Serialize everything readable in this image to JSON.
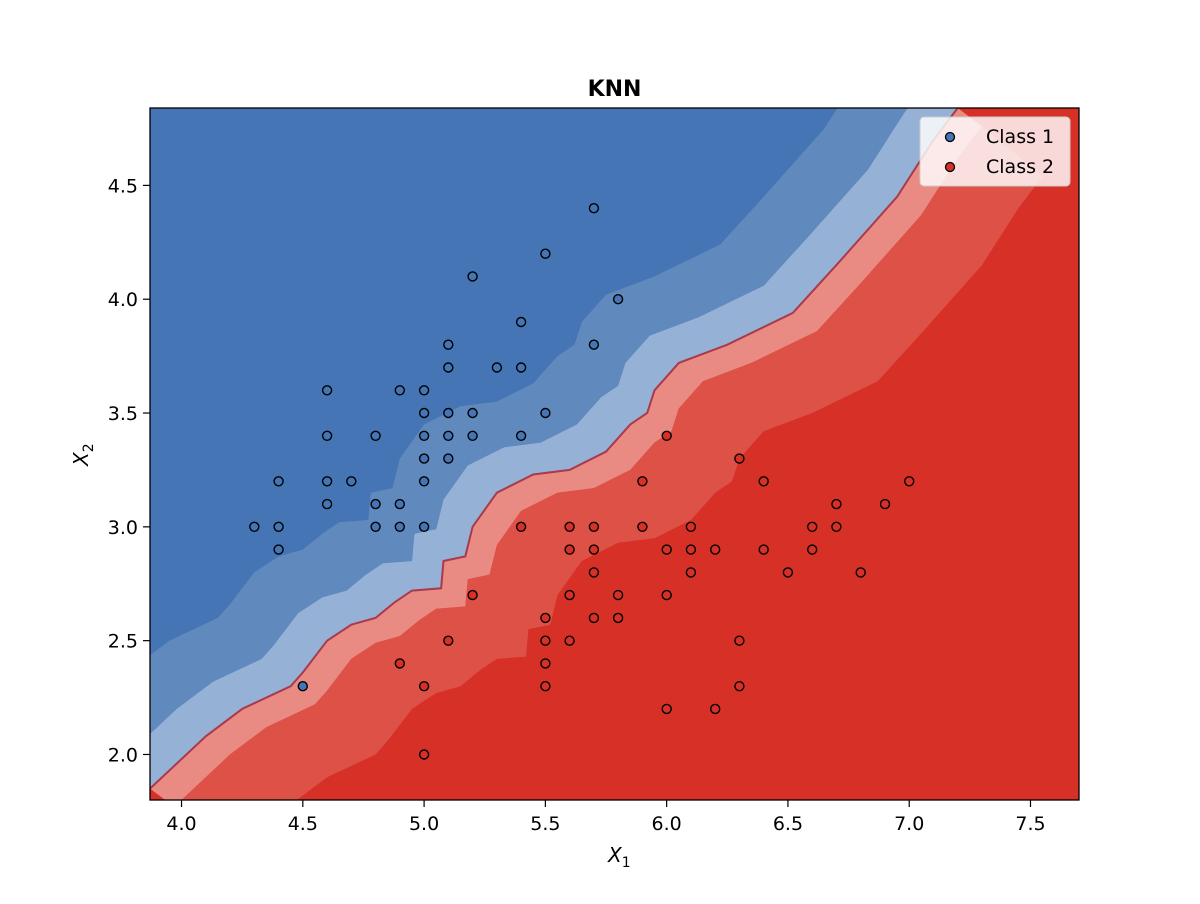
{
  "chart_data": {
    "type": "scatter",
    "title": "KNN",
    "xlabel": "X",
    "xlabel_sub": "1",
    "ylabel": "X",
    "ylabel_sub": "2",
    "xlim": [
      3.87,
      7.7
    ],
    "ylim": [
      1.8,
      4.84
    ],
    "xticks": [
      "4.0",
      "4.5",
      "5.0",
      "5.5",
      "6.0",
      "6.5",
      "7.0",
      "7.5"
    ],
    "yticks": [
      "2.0",
      "2.5",
      "3.0",
      "3.5",
      "4.0",
      "4.5"
    ],
    "legend_position": "top-right",
    "colors": {
      "class1": "#4575b4",
      "class2": "#d73027",
      "class1_light": "#a3bddc",
      "class2_light": "#ec9a94",
      "boundary": "#a83a4e"
    },
    "decision_boundary": [
      [
        3.87,
        1.85
      ],
      [
        4.1,
        2.08
      ],
      [
        4.25,
        2.2
      ],
      [
        4.45,
        2.3
      ],
      [
        4.5,
        2.36
      ],
      [
        4.6,
        2.5
      ],
      [
        4.7,
        2.57
      ],
      [
        4.8,
        2.6
      ],
      [
        4.88,
        2.67
      ],
      [
        4.95,
        2.72
      ],
      [
        5.07,
        2.73
      ],
      [
        5.08,
        2.85
      ],
      [
        5.17,
        2.87
      ],
      [
        5.2,
        3.0
      ],
      [
        5.3,
        3.15
      ],
      [
        5.45,
        3.23
      ],
      [
        5.6,
        3.25
      ],
      [
        5.75,
        3.33
      ],
      [
        5.85,
        3.45
      ],
      [
        5.92,
        3.5
      ],
      [
        5.95,
        3.6
      ],
      [
        6.05,
        3.72
      ],
      [
        6.25,
        3.8
      ],
      [
        6.52,
        3.94
      ],
      [
        6.7,
        4.15
      ],
      [
        6.95,
        4.45
      ],
      [
        7.1,
        4.7
      ],
      [
        7.2,
        4.84
      ]
    ],
    "series": [
      {
        "name": "Class 1",
        "points": [
          [
            5.7,
            4.4
          ],
          [
            5.5,
            4.2
          ],
          [
            5.2,
            4.1
          ],
          [
            5.8,
            4.0
          ],
          [
            5.4,
            3.9
          ],
          [
            5.1,
            3.8
          ],
          [
            5.7,
            3.8
          ],
          [
            5.1,
            3.7
          ],
          [
            5.3,
            3.7
          ],
          [
            5.4,
            3.7
          ],
          [
            4.6,
            3.6
          ],
          [
            4.9,
            3.6
          ],
          [
            5.0,
            3.6
          ],
          [
            5.0,
            3.5
          ],
          [
            5.1,
            3.5
          ],
          [
            5.2,
            3.5
          ],
          [
            5.5,
            3.5
          ],
          [
            4.6,
            3.4
          ],
          [
            4.8,
            3.4
          ],
          [
            5.0,
            3.4
          ],
          [
            5.1,
            3.4
          ],
          [
            5.2,
            3.4
          ],
          [
            5.4,
            3.4
          ],
          [
            5.0,
            3.3
          ],
          [
            5.1,
            3.3
          ],
          [
            4.4,
            3.2
          ],
          [
            4.6,
            3.2
          ],
          [
            4.7,
            3.2
          ],
          [
            5.0,
            3.2
          ],
          [
            4.6,
            3.1
          ],
          [
            4.8,
            3.1
          ],
          [
            4.9,
            3.1
          ],
          [
            4.3,
            3.0
          ],
          [
            4.4,
            3.0
          ],
          [
            4.8,
            3.0
          ],
          [
            4.9,
            3.0
          ],
          [
            5.0,
            3.0
          ],
          [
            4.4,
            2.9
          ],
          [
            4.5,
            2.3
          ]
        ]
      },
      {
        "name": "Class 2",
        "points": [
          [
            6.0,
            3.4
          ],
          [
            6.3,
            3.3
          ],
          [
            5.9,
            3.2
          ],
          [
            6.4,
            3.2
          ],
          [
            7.0,
            3.2
          ],
          [
            6.7,
            3.1
          ],
          [
            6.9,
            3.1
          ],
          [
            5.4,
            3.0
          ],
          [
            5.6,
            3.0
          ],
          [
            5.7,
            3.0
          ],
          [
            5.9,
            3.0
          ],
          [
            6.1,
            3.0
          ],
          [
            6.6,
            3.0
          ],
          [
            6.7,
            3.0
          ],
          [
            5.6,
            2.9
          ],
          [
            5.7,
            2.9
          ],
          [
            6.0,
            2.9
          ],
          [
            6.1,
            2.9
          ],
          [
            6.2,
            2.9
          ],
          [
            6.4,
            2.9
          ],
          [
            6.6,
            2.9
          ],
          [
            5.7,
            2.8
          ],
          [
            6.1,
            2.8
          ],
          [
            6.5,
            2.8
          ],
          [
            6.8,
            2.8
          ],
          [
            5.2,
            2.7
          ],
          [
            5.6,
            2.7
          ],
          [
            5.8,
            2.7
          ],
          [
            6.0,
            2.7
          ],
          [
            5.5,
            2.6
          ],
          [
            5.7,
            2.6
          ],
          [
            5.8,
            2.6
          ],
          [
            5.1,
            2.5
          ],
          [
            5.5,
            2.5
          ],
          [
            5.6,
            2.5
          ],
          [
            6.3,
            2.5
          ],
          [
            4.9,
            2.4
          ],
          [
            5.5,
            2.4
          ],
          [
            5.0,
            2.3
          ],
          [
            5.5,
            2.3
          ],
          [
            6.3,
            2.3
          ],
          [
            6.0,
            2.2
          ],
          [
            6.2,
            2.2
          ],
          [
            5.0,
            2.0
          ]
        ]
      }
    ]
  }
}
